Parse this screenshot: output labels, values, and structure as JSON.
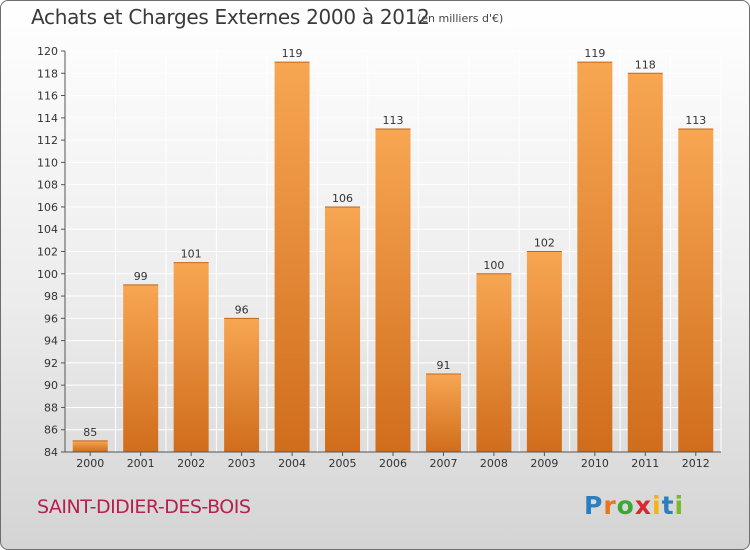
{
  "header": {
    "title": "Achats et Charges Externes 2000 à 2012",
    "unit": "(en milliers d'€)"
  },
  "footer": {
    "commune": "SAINT-DIDIER-DES-BOIS",
    "logo_text": "Proxiti",
    "logo_colors": [
      "#2b7fc0",
      "#e8741c",
      "#3aa835",
      "#d8292f",
      "#f2b40f",
      "#2b7fc0",
      "#7ab82f"
    ]
  },
  "chart_data": {
    "type": "bar",
    "title": "Achats et Charges Externes 2000 à 2012",
    "xlabel": "",
    "ylabel": "",
    "categories": [
      "2000",
      "2001",
      "2002",
      "2003",
      "2004",
      "2005",
      "2006",
      "2007",
      "2008",
      "2009",
      "2010",
      "2011",
      "2012"
    ],
    "values": [
      85,
      99,
      101,
      96,
      119,
      106,
      113,
      91,
      100,
      102,
      119,
      118,
      113
    ],
    "ylim": [
      84,
      120
    ],
    "yticks": [
      84,
      86,
      88,
      90,
      92,
      94,
      96,
      98,
      100,
      102,
      104,
      106,
      108,
      110,
      112,
      114,
      116,
      118,
      120
    ],
    "grid": true,
    "colors": {
      "bar_top": "#f7a652",
      "bar_bottom": "#d06d1c",
      "grid": "#ffffff",
      "axis": "#555555"
    }
  }
}
